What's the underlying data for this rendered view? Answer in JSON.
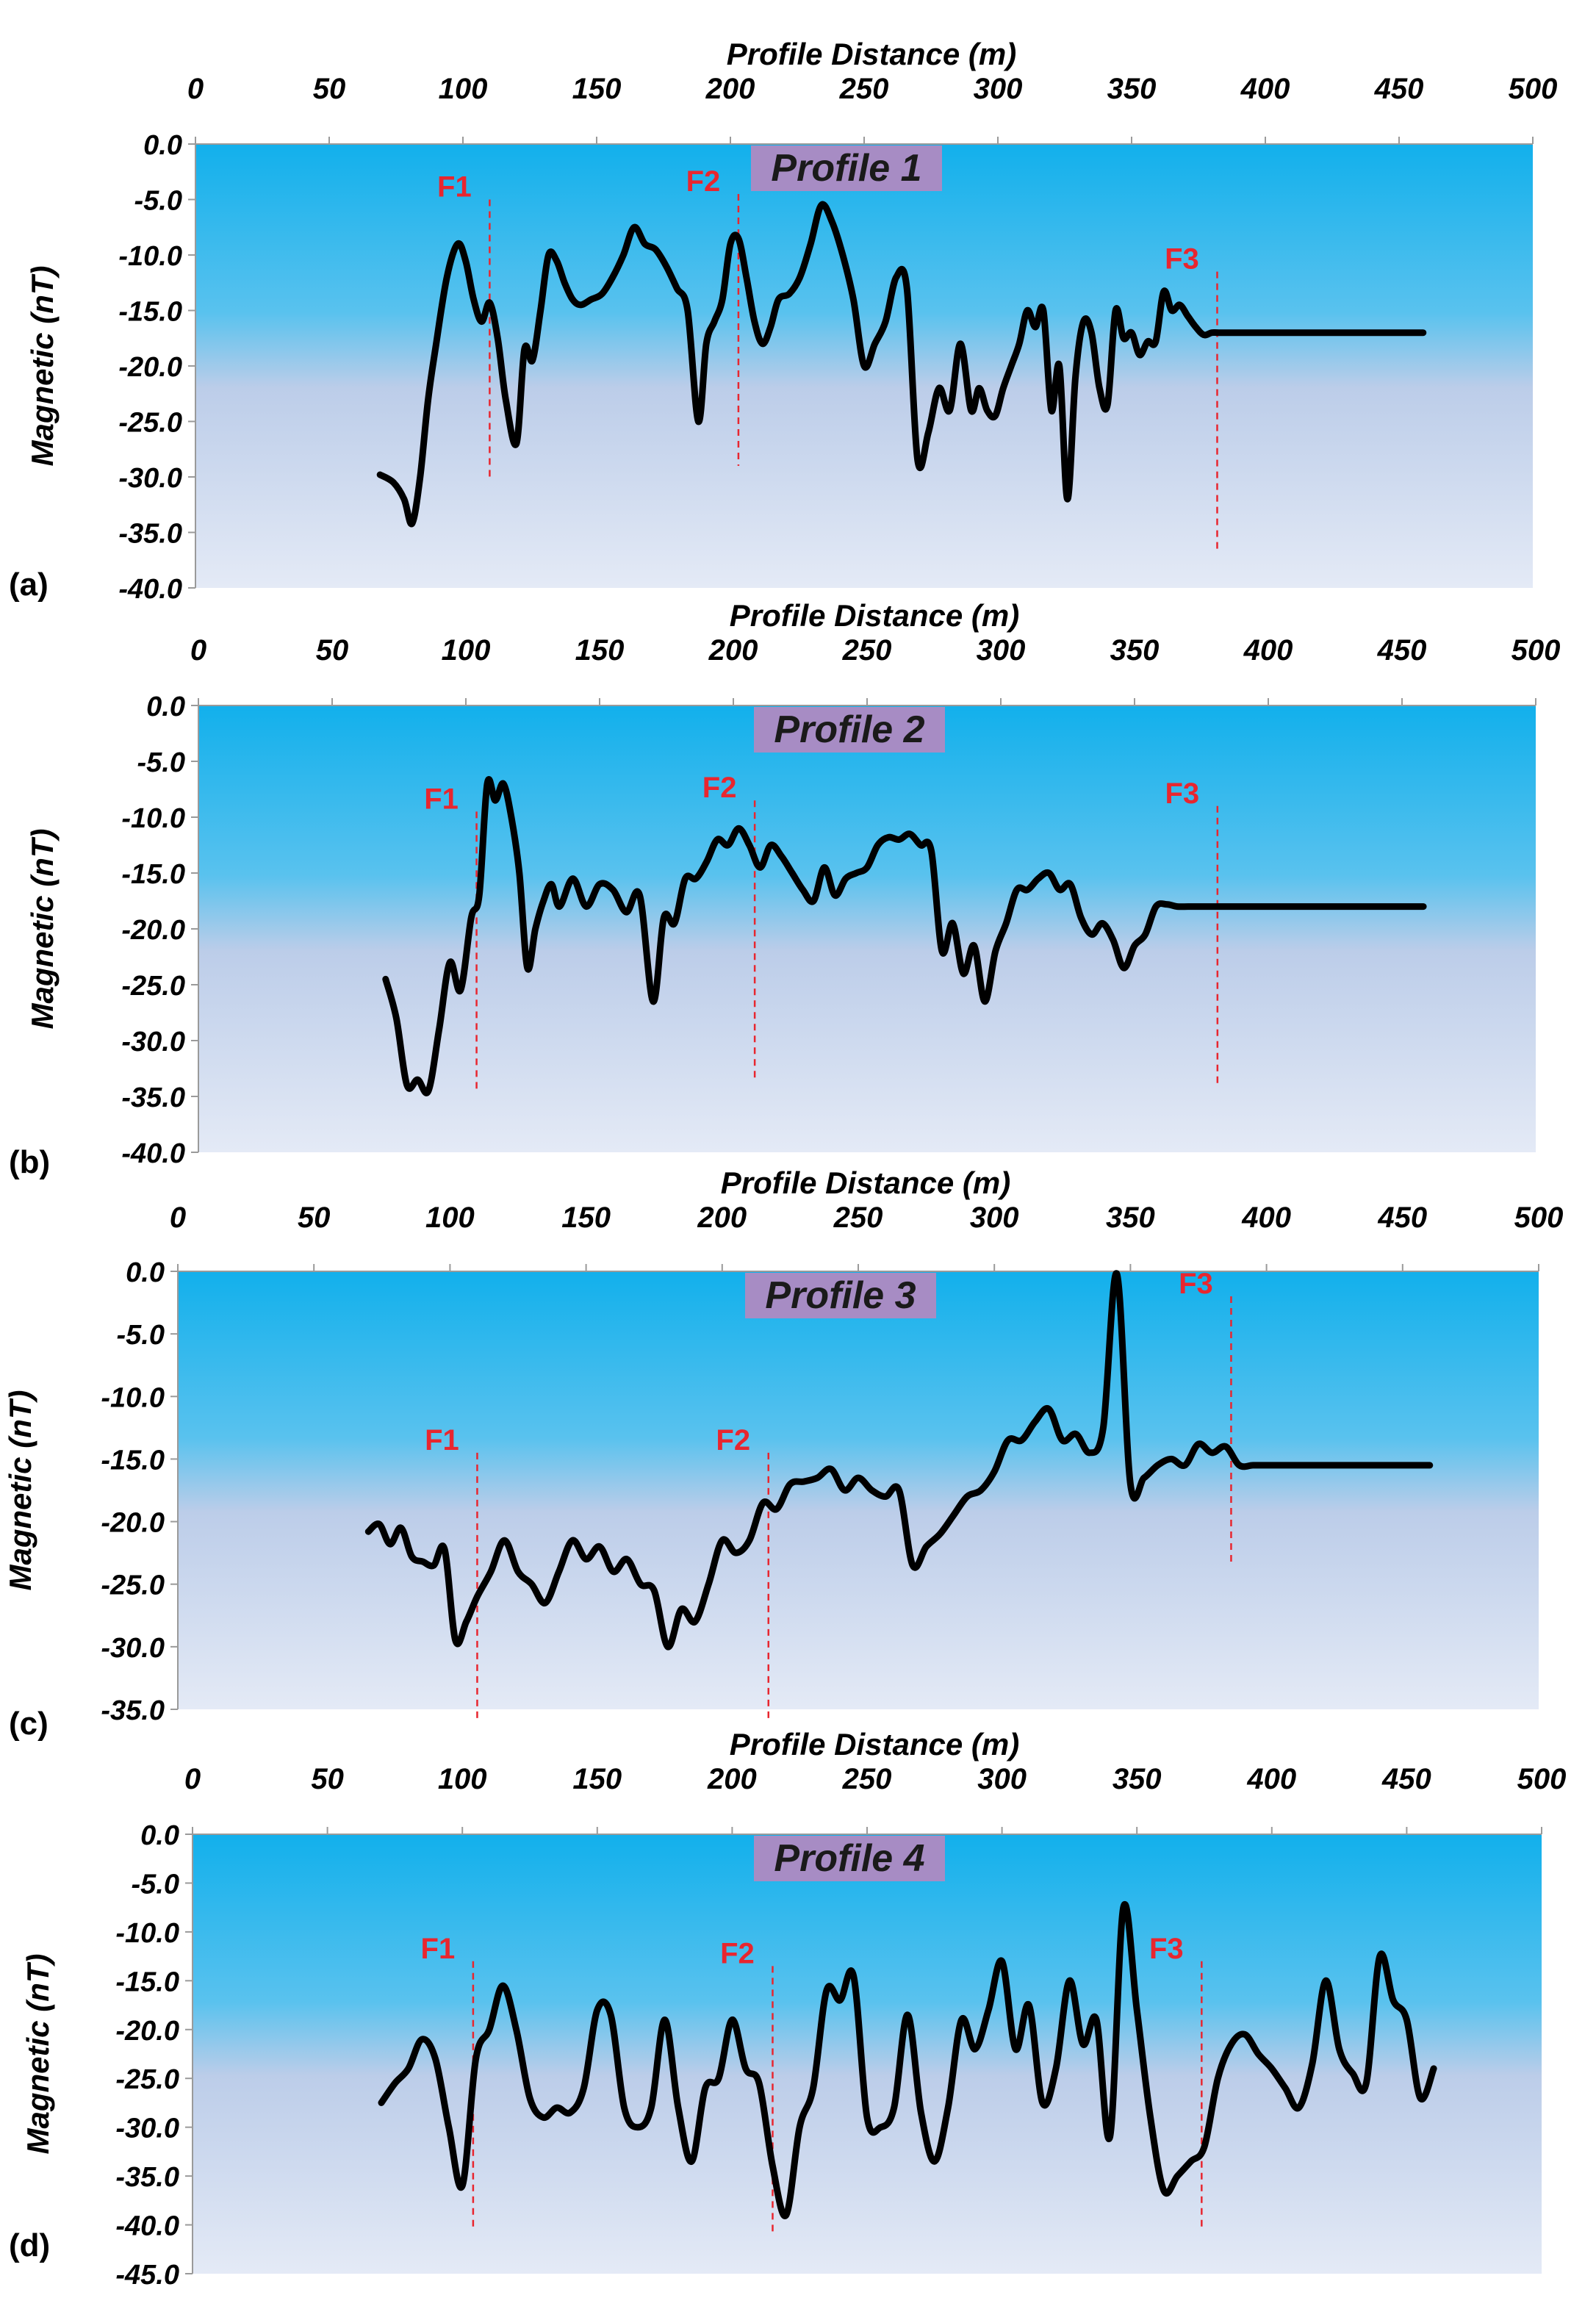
{
  "figure": {
    "colors": {
      "bg_top": "#12b0ec",
      "bg_mid": "#bccde9",
      "bg_bottom": "#e4eaf6",
      "line": "#000000",
      "fault": "#e8262f",
      "title_box": "#a78cc4"
    }
  },
  "chart_data": [
    {
      "type": "line",
      "panel_label": "(a)",
      "title": "Profile 1",
      "xlabel": "Profile Distance (m)",
      "ylabel": "Magnetic (nT)",
      "xlim": [
        0,
        500
      ],
      "ylim": [
        -40,
        0
      ],
      "xticks": [
        0,
        50,
        100,
        150,
        200,
        250,
        300,
        350,
        400,
        450,
        500
      ],
      "yticks": [
        0,
        -5,
        -10,
        -15,
        -20,
        -25,
        -30,
        -35,
        -40
      ],
      "ytick_labels": [
        "0.0",
        "-5.0",
        "-10.0",
        "-15.0",
        "-20.0",
        "-25.0",
        "-30.0",
        "-35.0",
        "-40.0"
      ],
      "grid": false,
      "faults": [
        {
          "label": "F1",
          "x": 110,
          "y_top": -5,
          "y_bottom": -30
        },
        {
          "label": "F2",
          "x": 203,
          "y_top": -4.5,
          "y_bottom": -29
        },
        {
          "label": "F3",
          "x": 382,
          "y_top": -11.5,
          "y_bottom": -36.5
        }
      ],
      "x": [
        69,
        74,
        78,
        81,
        84,
        87,
        90,
        94,
        98,
        101,
        104,
        107,
        110,
        113,
        116,
        120,
        123,
        126,
        129,
        132,
        135,
        138,
        141,
        144,
        148,
        152,
        156,
        160,
        164,
        168,
        172,
        176,
        180,
        184,
        188,
        191,
        194,
        197,
        200,
        203,
        206,
        209,
        212,
        215,
        218,
        222,
        226,
        230,
        234,
        238,
        242,
        246,
        250,
        254,
        258,
        262,
        266,
        270,
        274,
        278,
        282,
        286,
        290,
        293,
        296,
        299,
        302,
        305,
        308,
        311,
        314,
        317,
        320,
        323,
        326,
        329,
        332,
        335,
        338,
        341,
        344,
        347,
        350,
        353,
        356,
        359,
        362,
        365,
        368,
        371,
        374,
        377,
        380,
        383,
        386,
        389,
        392,
        395,
        398,
        401,
        404,
        407,
        410,
        413,
        416,
        419,
        422,
        425,
        428,
        431,
        434,
        437,
        440,
        443,
        446,
        449,
        452,
        455,
        459
      ],
      "y": [
        -29.8,
        -30.5,
        -32,
        -34.2,
        -30,
        -23,
        -18,
        -12,
        -9,
        -10.5,
        -14,
        -16,
        -14.3,
        -17.5,
        -23,
        -27,
        -18.5,
        -19.5,
        -15,
        -10,
        -10.5,
        -12.5,
        -14,
        -14.5,
        -14,
        -13.5,
        -12,
        -10,
        -7.5,
        -9,
        -9.5,
        -11,
        -13,
        -15,
        -25,
        -18,
        -16,
        -14,
        -9,
        -8.5,
        -12,
        -16,
        -18,
        -16.5,
        -14,
        -13.5,
        -12,
        -9,
        -5.5,
        -7,
        -10,
        -14,
        -20,
        -18,
        -16,
        -12,
        -13,
        -28.5,
        -26,
        -22,
        -24,
        -18,
        -24,
        -22,
        -24,
        -24.5,
        -22,
        -20,
        -18,
        -15,
        -16.5,
        -15,
        -24,
        -20,
        -32,
        -21,
        -16,
        -17,
        -22,
        -23.5,
        -15,
        -17.5,
        -17,
        -19,
        -17.8,
        -17.8,
        -13.3,
        -15,
        -14.5,
        -15.5,
        -16.5,
        -17.2,
        -17,
        -17,
        -17,
        -17,
        -17,
        -17,
        -17,
        -17,
        -17,
        -17,
        -17,
        -17,
        -17,
        -17,
        -17,
        -17,
        -17,
        -17,
        -17,
        -17,
        -17,
        -17,
        -17,
        -17,
        -17,
        -17,
        -17
      ]
    },
    {
      "type": "line",
      "panel_label": "(b)",
      "title": "Profile 2",
      "xlabel": "Profile Distance (m)",
      "ylabel": "Magnetic (nT)",
      "xlim": [
        0,
        500
      ],
      "ylim": [
        -40,
        0
      ],
      "xticks": [
        0,
        50,
        100,
        150,
        200,
        250,
        300,
        350,
        400,
        450,
        500
      ],
      "yticks": [
        0,
        -5,
        -10,
        -15,
        -20,
        -25,
        -30,
        -35,
        -40
      ],
      "ytick_labels": [
        "0.0",
        "-5.0",
        "-10.0",
        "-15.0",
        "-20.0",
        "-25.0",
        "-30.0",
        "-35.0",
        "-40.0"
      ],
      "grid": false,
      "faults": [
        {
          "label": "F1",
          "x": 104,
          "y_top": -9.5,
          "y_bottom": -34.5
        },
        {
          "label": "F2",
          "x": 208,
          "y_top": -8.5,
          "y_bottom": -33.5
        },
        {
          "label": "F3",
          "x": 381,
          "y_top": -9,
          "y_bottom": -34
        }
      ],
      "x": [
        70,
        74,
        78,
        82,
        86,
        90,
        94,
        98,
        102,
        105,
        108,
        111,
        114,
        117,
        120,
        123,
        126,
        129,
        132,
        135,
        140,
        145,
        150,
        155,
        160,
        165,
        170,
        174,
        178,
        182,
        186,
        190,
        194,
        198,
        202,
        206,
        210,
        214,
        218,
        222,
        226,
        230,
        234,
        238,
        242,
        246,
        250,
        254,
        258,
        262,
        266,
        270,
        274,
        278,
        282,
        286,
        290,
        294,
        298,
        302,
        306,
        310,
        314,
        318,
        322,
        326,
        330,
        334,
        338,
        342,
        346,
        350,
        354,
        358,
        362,
        366,
        370,
        374,
        378,
        382,
        386,
        390,
        394,
        398,
        402,
        406,
        410,
        414,
        418,
        422,
        426,
        430,
        434,
        438,
        442,
        446,
        450,
        454,
        458
      ],
      "y": [
        -24.5,
        -28,
        -34,
        -33.5,
        -34.5,
        -29,
        -23,
        -25.5,
        -19,
        -17,
        -7,
        -8.5,
        -7,
        -10,
        -15,
        -23.5,
        -20,
        -17.5,
        -16,
        -18,
        -15.5,
        -18,
        -16,
        -16.5,
        -18.5,
        -17,
        -26.5,
        -19,
        -19.5,
        -15.5,
        -15.5,
        -14,
        -12,
        -12.5,
        -11,
        -12.5,
        -14.5,
        -12.5,
        -13.5,
        -15,
        -16.5,
        -17.5,
        -14.5,
        -17,
        -15.5,
        -15,
        -14.5,
        -12.5,
        -11.8,
        -12,
        -11.5,
        -12.5,
        -13,
        -22,
        -19.5,
        -24,
        -21.5,
        -26.5,
        -22,
        -19.5,
        -16.5,
        -16.5,
        -15.5,
        -15,
        -16.5,
        -16,
        -19,
        -20.5,
        -19.5,
        -21,
        -23.5,
        -21.5,
        -20.5,
        -18,
        -17.8,
        -18,
        -18,
        -18,
        -18,
        -18,
        -18,
        -18,
        -18,
        -18,
        -18,
        -18,
        -18,
        -18,
        -18,
        -18,
        -18,
        -18,
        -18,
        -18,
        -18,
        -18,
        -18,
        -18,
        -18
      ]
    },
    {
      "type": "line",
      "panel_label": "(c)",
      "title": "Profile 3",
      "xlabel": "Profile Distance (m)",
      "ylabel": "Magnetic (nT)",
      "xlim": [
        0,
        500
      ],
      "ylim": [
        -35,
        0
      ],
      "xticks": [
        0,
        50,
        100,
        150,
        200,
        250,
        300,
        350,
        400,
        450,
        500
      ],
      "yticks": [
        0,
        -5,
        -10,
        -15,
        -20,
        -25,
        -30,
        -35
      ],
      "ytick_labels": [
        "0.0",
        "-5.0",
        "-10.0",
        "-15.0",
        "-20.0",
        "-25.0",
        "-30.0",
        "-35.0"
      ],
      "grid": false,
      "faults": [
        {
          "label": "F1",
          "x": 110,
          "y_top": -14.5,
          "y_bottom": -36
        },
        {
          "label": "F2",
          "x": 217,
          "y_top": -14.5,
          "y_bottom": -36
        },
        {
          "label": "F3",
          "x": 387,
          "y_top": -2,
          "y_bottom": -23.5
        }
      ],
      "x": [
        70,
        74,
        78,
        82,
        86,
        90,
        94,
        98,
        102,
        106,
        110,
        115,
        120,
        125,
        130,
        135,
        140,
        145,
        150,
        155,
        160,
        165,
        170,
        175,
        180,
        185,
        190,
        195,
        200,
        205,
        210,
        215,
        220,
        225,
        230,
        235,
        240,
        245,
        250,
        255,
        260,
        265,
        270,
        275,
        280,
        285,
        290,
        295,
        300,
        305,
        310,
        315,
        320,
        325,
        330,
        335,
        340,
        345,
        350,
        355,
        360,
        365,
        370,
        375,
        380,
        385,
        390,
        395,
        400,
        405,
        410,
        415,
        420,
        425,
        430,
        435,
        440,
        445,
        450,
        455,
        460
      ],
      "y": [
        -20.8,
        -20.2,
        -21.8,
        -20.5,
        -22.8,
        -23.2,
        -23.5,
        -22.2,
        -29.5,
        -28,
        -26,
        -24,
        -21.5,
        -24,
        -25,
        -26.5,
        -24,
        -21.5,
        -23,
        -22,
        -24,
        -23,
        -25,
        -25.5,
        -30,
        -27,
        -28,
        -25,
        -21.5,
        -22.5,
        -21.5,
        -18.5,
        -19,
        -17,
        -16.8,
        -16.5,
        -15.8,
        -17.5,
        -16.5,
        -17.5,
        -18,
        -17.5,
        -23.5,
        -22,
        -21,
        -19.5,
        -18,
        -17.5,
        -16,
        -13.5,
        -13.5,
        -12,
        -11,
        -13.5,
        -13,
        -14.5,
        -12.5,
        -0.2,
        -17,
        -16.5,
        -15.5,
        -15,
        -15.5,
        -13.8,
        -14.5,
        -14,
        -15.5,
        -15.5,
        -15.5,
        -15.5,
        -15.5,
        -15.5,
        -15.5,
        -15.5,
        -15.5,
        -15.5,
        -15.5,
        -15.5,
        -15.5,
        -15.5,
        -15.5
      ]
    },
    {
      "type": "line",
      "panel_label": "(d)",
      "title": "Profile 4",
      "xlabel": "Profile Distance (m)",
      "ylabel": "Magnetic (nT)",
      "xlim": [
        0,
        500
      ],
      "ylim": [
        -45,
        0
      ],
      "xticks": [
        0,
        50,
        100,
        150,
        200,
        250,
        300,
        350,
        400,
        450,
        500
      ],
      "yticks": [
        0,
        -5,
        -10,
        -15,
        -20,
        -25,
        -30,
        -35,
        -40,
        -45
      ],
      "ytick_labels": [
        "0.0",
        "-5.0",
        "-10.0",
        "-15.0",
        "-20.0",
        "-25.0",
        "-30.0",
        "-35.0",
        "-40.0",
        "-45.0"
      ],
      "grid": false,
      "faults": [
        {
          "label": "F1",
          "x": 104,
          "y_top": -13,
          "y_bottom": -40.5
        },
        {
          "label": "F2",
          "x": 215,
          "y_top": -13.5,
          "y_bottom": -41
        },
        {
          "label": "F3",
          "x": 374,
          "y_top": -13,
          "y_bottom": -40.5
        }
      ],
      "x": [
        70,
        75,
        80,
        85,
        90,
        95,
        100,
        105,
        110,
        115,
        120,
        125,
        130,
        135,
        140,
        145,
        150,
        155,
        160,
        165,
        170,
        175,
        180,
        185,
        190,
        195,
        200,
        205,
        210,
        215,
        220,
        225,
        230,
        235,
        240,
        245,
        250,
        255,
        260,
        265,
        270,
        275,
        280,
        285,
        290,
        295,
        300,
        305,
        310,
        315,
        320,
        325,
        330,
        335,
        340,
        345,
        350,
        355,
        360,
        365,
        370,
        375,
        380,
        385,
        390,
        395,
        400,
        405,
        410,
        415,
        420,
        425,
        430,
        435,
        440,
        445,
        450,
        455,
        460
      ],
      "y": [
        -27.5,
        -25.5,
        -24,
        -21,
        -23,
        -30,
        -36,
        -23,
        -20,
        -15.5,
        -20,
        -27,
        -29,
        -28,
        -28.5,
        -26,
        -18,
        -18.5,
        -28,
        -30,
        -28,
        -19,
        -28,
        -33.5,
        -26,
        -25,
        -19,
        -24,
        -25.5,
        -34,
        -39,
        -30,
        -26,
        -16,
        -17,
        -14.5,
        -29,
        -30,
        -28,
        -18.5,
        -28.5,
        -33.5,
        -28,
        -19,
        -22,
        -18,
        -13,
        -22,
        -17.5,
        -27.5,
        -24,
        -15,
        -21.5,
        -19,
        -31,
        -7.5,
        -18,
        -29,
        -36.5,
        -35,
        -33.5,
        -32,
        -25,
        -21.5,
        -20.5,
        -22.5,
        -24,
        -26,
        -28,
        -23.5,
        -15,
        -22,
        -24.5,
        -25.5,
        -12.5,
        -17,
        -19,
        -27,
        -24
      ]
    }
  ]
}
